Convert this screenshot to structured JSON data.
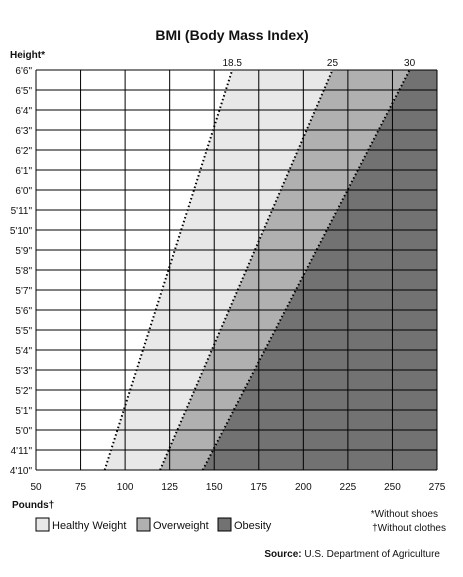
{
  "chart_data": {
    "type": "area",
    "title": "BMI (Body Mass Index)",
    "ylabel": "Height*",
    "xlabel": "Pounds†",
    "x_ticks": [
      "50",
      "75",
      "100",
      "125",
      "150",
      "175",
      "200",
      "225",
      "250",
      "275"
    ],
    "xlim": [
      50,
      275
    ],
    "y_ticks": [
      "4'10\"",
      "4'11\"",
      "5'0\"",
      "5'1\"",
      "5'2\"",
      "5'3\"",
      "5'4\"",
      "5'5\"",
      "5'6\"",
      "5'7\"",
      "5'8\"",
      "5'9\"",
      "5'10\"",
      "5'11\"",
      "6'0\"",
      "6'1\"",
      "6'2\"",
      "6'3\"",
      "6'4\"",
      "6'5\"",
      "6'6\""
    ],
    "ylim_inches": [
      58,
      78
    ],
    "grid": true,
    "bmi_lines": [
      {
        "label": "18.5",
        "bmi": 18.5
      },
      {
        "label": "25",
        "bmi": 25
      },
      {
        "label": "30",
        "bmi": 30
      }
    ],
    "regions": [
      {
        "name": "Healthy Weight",
        "bmi_range": [
          18.5,
          25
        ],
        "color": "#e8e8e8"
      },
      {
        "name": "Overweight",
        "bmi_range": [
          25,
          30
        ],
        "color": "#b0b0b0"
      },
      {
        "name": "Obesity",
        "bmi_range": [
          30,
          100
        ],
        "color": "#727272"
      }
    ],
    "legend": [
      "Healthy Weight",
      "Overweight",
      "Obesity"
    ],
    "legend_position": "bottom-left",
    "notes": [
      "*Without shoes",
      "†Without clothes"
    ]
  },
  "source": {
    "label": "Source:",
    "text": "U.S. Department of Agriculture"
  }
}
